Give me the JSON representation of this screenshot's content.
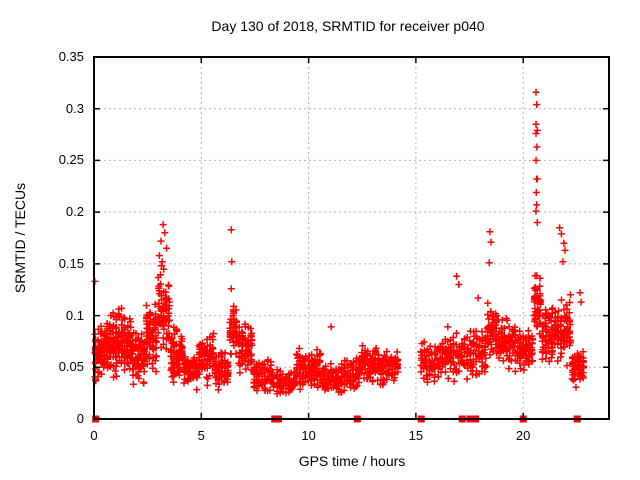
{
  "chart_data": {
    "type": "scatter",
    "title": "Day 130 of 2018, SRMTID for receiver p040",
    "xlabel": "GPS time / hours",
    "ylabel": "SRMTID / TECUs",
    "xlim": [
      0,
      24
    ],
    "ylim": [
      0,
      0.35
    ],
    "xticks": {
      "values": [
        0,
        5,
        10,
        15,
        20
      ],
      "labels": [
        "0",
        "5",
        "10",
        "15",
        "20"
      ]
    },
    "yticks": {
      "values": [
        0,
        0.05,
        0.1,
        0.15,
        0.2,
        0.25,
        0.3,
        0.35
      ],
      "labels": [
        "0",
        "0.05",
        "0.1",
        "0.15",
        "0.2",
        "0.25",
        "0.3",
        "0.35"
      ]
    },
    "grid": true,
    "legend": "none",
    "marker": "plus",
    "zero_marker": "filled-square",
    "colors": {
      "points": "#ff0000",
      "grid": "#b0b0b0",
      "border": "#000000",
      "text": "#000000",
      "background": "#ffffff"
    },
    "cluster_model": [
      {
        "x0": 0.0,
        "x1": 0.55,
        "n": 70,
        "yc": 0.065,
        "ys": 0.035,
        "ymin": 0.035,
        "ymax": 0.105
      },
      {
        "x0": 0.55,
        "x1": 1.1,
        "n": 90,
        "yc": 0.07,
        "ys": 0.04,
        "ymin": 0.035,
        "ymax": 0.12
      },
      {
        "x0": 1.1,
        "x1": 1.75,
        "n": 100,
        "yc": 0.075,
        "ys": 0.04,
        "ymin": 0.038,
        "ymax": 0.122
      },
      {
        "x0": 1.75,
        "x1": 2.4,
        "n": 85,
        "yc": 0.06,
        "ys": 0.03,
        "ymin": 0.033,
        "ymax": 0.1
      },
      {
        "x0": 2.4,
        "x1": 2.95,
        "n": 75,
        "yc": 0.08,
        "ys": 0.045,
        "ymin": 0.04,
        "ymax": 0.145
      },
      {
        "x0": 2.95,
        "x1": 3.55,
        "n": 75,
        "yc": 0.105,
        "ys": 0.05,
        "ymin": 0.05,
        "ymax": 0.185
      },
      {
        "x0": 3.55,
        "x1": 4.15,
        "n": 80,
        "yc": 0.062,
        "ys": 0.035,
        "ymin": 0.03,
        "ymax": 0.108
      },
      {
        "x0": 4.15,
        "x1": 4.85,
        "n": 85,
        "yc": 0.048,
        "ys": 0.022,
        "ymin": 0.025,
        "ymax": 0.08
      },
      {
        "x0": 4.85,
        "x1": 5.6,
        "n": 75,
        "yc": 0.058,
        "ys": 0.032,
        "ymin": 0.025,
        "ymax": 0.115
      },
      {
        "x0": 5.6,
        "x1": 6.3,
        "n": 70,
        "yc": 0.048,
        "ys": 0.025,
        "ymin": 0.02,
        "ymax": 0.09
      },
      {
        "x0": 6.3,
        "x1": 6.7,
        "n": 45,
        "yc": 0.085,
        "ys": 0.03,
        "ymin": 0.05,
        "ymax": 0.125
      },
      {
        "x0": 6.7,
        "x1": 7.4,
        "n": 75,
        "yc": 0.068,
        "ys": 0.032,
        "ymin": 0.03,
        "ymax": 0.113
      },
      {
        "x0": 7.4,
        "x1": 8.4,
        "n": 85,
        "yc": 0.042,
        "ys": 0.022,
        "ymin": 0.015,
        "ymax": 0.08
      },
      {
        "x0": 8.5,
        "x1": 9.4,
        "n": 75,
        "yc": 0.034,
        "ys": 0.018,
        "ymin": 0.012,
        "ymax": 0.062
      },
      {
        "x0": 9.4,
        "x1": 10.6,
        "n": 115,
        "yc": 0.048,
        "ys": 0.025,
        "ymin": 0.018,
        "ymax": 0.098
      },
      {
        "x0": 10.6,
        "x1": 11.6,
        "n": 90,
        "yc": 0.038,
        "ys": 0.018,
        "ymin": 0.015,
        "ymax": 0.07
      },
      {
        "x0": 11.6,
        "x1": 12.3,
        "n": 60,
        "yc": 0.044,
        "ys": 0.02,
        "ymin": 0.02,
        "ymax": 0.076
      },
      {
        "x0": 12.3,
        "x1": 13.3,
        "n": 95,
        "yc": 0.054,
        "ys": 0.025,
        "ymin": 0.025,
        "ymax": 0.094
      },
      {
        "x0": 13.3,
        "x1": 14.2,
        "n": 80,
        "yc": 0.05,
        "ys": 0.022,
        "ymin": 0.025,
        "ymax": 0.088
      },
      {
        "x0": 15.2,
        "x1": 16.2,
        "n": 85,
        "yc": 0.055,
        "ys": 0.026,
        "ymin": 0.026,
        "ymax": 0.092
      },
      {
        "x0": 16.2,
        "x1": 17.2,
        "n": 85,
        "yc": 0.062,
        "ys": 0.03,
        "ymin": 0.03,
        "ymax": 0.108
      },
      {
        "x0": 17.2,
        "x1": 18.3,
        "n": 95,
        "yc": 0.065,
        "ys": 0.032,
        "ymin": 0.03,
        "ymax": 0.118
      },
      {
        "x0": 18.3,
        "x1": 18.8,
        "n": 55,
        "yc": 0.085,
        "ys": 0.035,
        "ymin": 0.05,
        "ymax": 0.14
      },
      {
        "x0": 18.8,
        "x1": 19.8,
        "n": 95,
        "yc": 0.075,
        "ys": 0.032,
        "ymin": 0.04,
        "ymax": 0.12
      },
      {
        "x0": 19.8,
        "x1": 20.48,
        "n": 70,
        "yc": 0.065,
        "ys": 0.028,
        "ymin": 0.038,
        "ymax": 0.1
      },
      {
        "x0": 20.48,
        "x1": 20.85,
        "n": 50,
        "yc": 0.115,
        "ys": 0.045,
        "ymin": 0.06,
        "ymax": 0.19
      },
      {
        "x0": 20.85,
        "x1": 21.55,
        "n": 80,
        "yc": 0.082,
        "ys": 0.038,
        "ymin": 0.042,
        "ymax": 0.15
      },
      {
        "x0": 21.55,
        "x1": 22.25,
        "n": 75,
        "yc": 0.085,
        "ys": 0.04,
        "ymin": 0.042,
        "ymax": 0.16
      },
      {
        "x0": 22.25,
        "x1": 22.85,
        "n": 65,
        "yc": 0.05,
        "ys": 0.02,
        "ymin": 0.028,
        "ymax": 0.082
      }
    ],
    "outlier_points": [
      [
        0.04,
        0.133
      ],
      [
        3.22,
        0.188
      ],
      [
        3.3,
        0.18
      ],
      [
        3.12,
        0.172
      ],
      [
        3.38,
        0.165
      ],
      [
        3.05,
        0.158
      ],
      [
        3.18,
        0.152
      ],
      [
        6.4,
        0.183
      ],
      [
        6.42,
        0.152
      ],
      [
        6.4,
        0.126
      ],
      [
        11.05,
        0.089
      ],
      [
        16.9,
        0.138
      ],
      [
        17.0,
        0.13
      ],
      [
        17.9,
        0.117
      ],
      [
        18.45,
        0.181
      ],
      [
        18.5,
        0.171
      ],
      [
        18.42,
        0.151
      ],
      [
        20.6,
        0.316
      ],
      [
        20.63,
        0.304
      ],
      [
        20.6,
        0.285
      ],
      [
        20.66,
        0.279
      ],
      [
        20.6,
        0.276
      ],
      [
        20.64,
        0.263
      ],
      [
        20.6,
        0.25
      ],
      [
        20.63,
        0.232
      ],
      [
        20.66,
        0.232
      ],
      [
        20.61,
        0.219
      ],
      [
        20.63,
        0.207
      ],
      [
        20.6,
        0.201
      ],
      [
        20.66,
        0.19
      ],
      [
        21.7,
        0.185
      ],
      [
        21.78,
        0.179
      ],
      [
        21.9,
        0.17
      ],
      [
        21.95,
        0.163
      ],
      [
        21.85,
        0.152
      ],
      [
        22.65,
        0.122
      ],
      [
        22.7,
        0.113
      ]
    ],
    "zero_markers_x": [
      0.08,
      8.42,
      8.6,
      12.27,
      15.25,
      17.16,
      17.52,
      17.78,
      20.0,
      22.52
    ]
  }
}
